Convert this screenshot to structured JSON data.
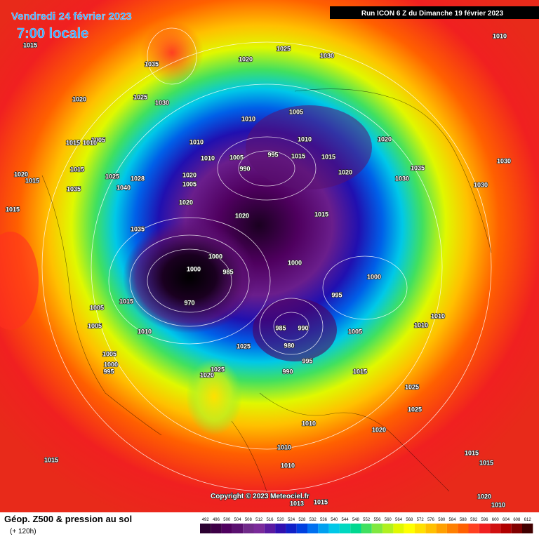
{
  "header": {
    "date": "Vendredi 24 février 2023",
    "time": "7:00 locale",
    "run": "Run ICON 6 Z du Dimanche 19 février 2023"
  },
  "footer": {
    "title": "Géop. Z500 & pression au sol",
    "lead": "(+ 120h)",
    "copyright": "Copyright © 2023 Meteociel.fr"
  },
  "scale": {
    "values": [
      492,
      496,
      500,
      504,
      508,
      512,
      516,
      520,
      524,
      528,
      532,
      536,
      540,
      544,
      548,
      552,
      556,
      560,
      564,
      568,
      572,
      576,
      580,
      584,
      588,
      592,
      596,
      600,
      604,
      608,
      612
    ],
    "colors": [
      "#2b0030",
      "#3d0046",
      "#4f005f",
      "#5a1070",
      "#702a8a",
      "#7a2a9a",
      "#5a1aa0",
      "#3010b0",
      "#1020c8",
      "#0040e0",
      "#0070f0",
      "#00a0f0",
      "#00c8e8",
      "#00d8c0",
      "#00d890",
      "#40e060",
      "#80e840",
      "#b0f020",
      "#e0f800",
      "#ffff00",
      "#ffe000",
      "#ffc000",
      "#ffa000",
      "#ff8000",
      "#ff6000",
      "#ff4020",
      "#f02020",
      "#d01010",
      "#b00000",
      "#800000",
      "#400000"
    ]
  },
  "isobars": {
    "labels": [
      "1015",
      "1035",
      "1020",
      "1025",
      "1030",
      "1010",
      "1020",
      "1025",
      "1030",
      "1005",
      "1010",
      "1005",
      "1015",
      "1010",
      "1010",
      "1010",
      "1005",
      "995",
      "990",
      "1010",
      "1015",
      "1020",
      "1015",
      "1020",
      "1030",
      "1035",
      "1030",
      "1030",
      "1020",
      "1015",
      "1025",
      "1028",
      "1015",
      "1020",
      "1005",
      "1040",
      "1035",
      "1015",
      "1020",
      "1020",
      "1015",
      "1035",
      "1000",
      "1000",
      "985",
      "1000",
      "1000",
      "995",
      "970",
      "1015",
      "1010",
      "985",
      "990",
      "980",
      "1005",
      "1010",
      "1010",
      "1005",
      "1005",
      "1025",
      "1005",
      "1000",
      "995",
      "995",
      "990",
      "1015",
      "1025",
      "1020",
      "1025",
      "1025",
      "1010",
      "1020",
      "1010",
      "1010",
      "1015",
      "1015",
      "1015",
      "1020",
      "1013",
      "1015",
      "1010"
    ]
  }
}
